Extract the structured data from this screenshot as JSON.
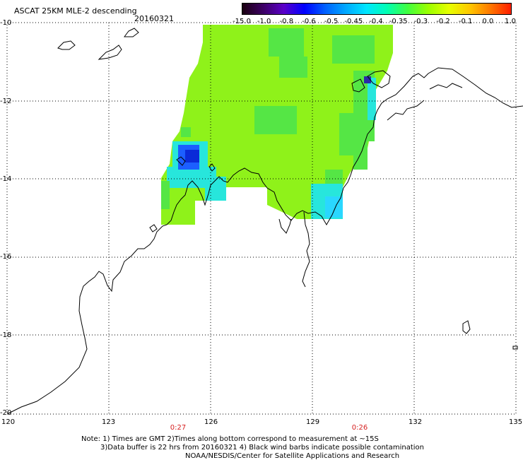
{
  "header": {
    "title": "ASCAT 25KM MLE-2 descending",
    "date": "20160321"
  },
  "colorbar": {
    "labels": [
      "-15.0",
      "-1.0",
      "-0.8",
      "-0.6",
      "-0.5",
      "-0.45",
      "-0.4",
      "-0.35",
      "-0.3",
      "-0.2",
      "-0.1",
      "0.0",
      "1.0"
    ],
    "colors": [
      "#1a0010",
      "#3c0064",
      "#5a00c8",
      "#0000ff",
      "#0060ff",
      "#00a8ff",
      "#00e6ff",
      "#00ffb4",
      "#40ff40",
      "#9bff00",
      "#e6ff00",
      "#ffc800",
      "#ff7800",
      "#ff1e00"
    ]
  },
  "axes": {
    "y_labels": [
      "-10",
      "-12",
      "-14",
      "-16",
      "-18",
      "-20"
    ],
    "x_labels": [
      "120",
      "123",
      "126",
      "129",
      "132",
      "135"
    ]
  },
  "times": [
    "0:27",
    "0:26"
  ],
  "footer": {
    "line1": "Note: 1) Times are GMT 2)Times along bottom correspond to measurement at ~15S",
    "line2": "3)Data buffer is 22 hrs from 20160321 4) Black wind barbs indicate possible contamination",
    "line3": "NOAA/NESDIS/Center for Satellite Applications and Research"
  },
  "colors": {
    "field_main": "#8ff21a",
    "field_green": "#55e645",
    "field_cyan": "#27e6dc",
    "field_blue": "#1c5fff"
  }
}
